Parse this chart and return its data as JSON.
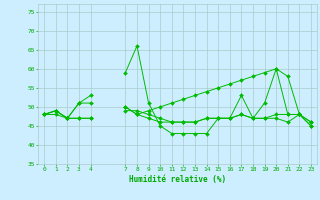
{
  "background_color": "#cceeff",
  "grid_color": "#aacccc",
  "line_color": "#00bb00",
  "marker_color": "#00bb00",
  "xlabel": "Humidité relative (%)",
  "xlabel_color": "#00aa00",
  "tick_color": "#00aa00",
  "ylim": [
    35,
    77
  ],
  "yticks": [
    35,
    40,
    45,
    50,
    55,
    60,
    65,
    70,
    75
  ],
  "xlim": [
    -0.5,
    23.5
  ],
  "xticks": [
    0,
    1,
    2,
    3,
    4,
    7,
    8,
    9,
    10,
    11,
    12,
    13,
    14,
    15,
    16,
    17,
    18,
    19,
    20,
    21,
    22,
    23
  ],
  "series": [
    [
      48,
      49,
      47,
      51,
      53,
      null,
      null,
      59,
      66,
      51,
      45,
      43,
      43,
      43,
      43,
      47,
      47,
      53,
      47,
      51,
      60,
      48,
      48,
      46
    ],
    [
      48,
      49,
      47,
      51,
      51,
      null,
      null,
      50,
      48,
      47,
      46,
      46,
      46,
      46,
      47,
      47,
      47,
      48,
      47,
      47,
      47,
      46,
      48,
      45
    ],
    [
      48,
      49,
      47,
      47,
      47,
      null,
      null,
      49,
      49,
      48,
      47,
      46,
      46,
      46,
      47,
      47,
      47,
      48,
      47,
      47,
      48,
      48,
      48,
      46
    ],
    [
      48,
      48,
      47,
      47,
      47,
      null,
      null,
      50,
      48,
      49,
      50,
      51,
      52,
      53,
      54,
      55,
      56,
      57,
      58,
      59,
      60,
      58,
      48,
      45
    ]
  ]
}
